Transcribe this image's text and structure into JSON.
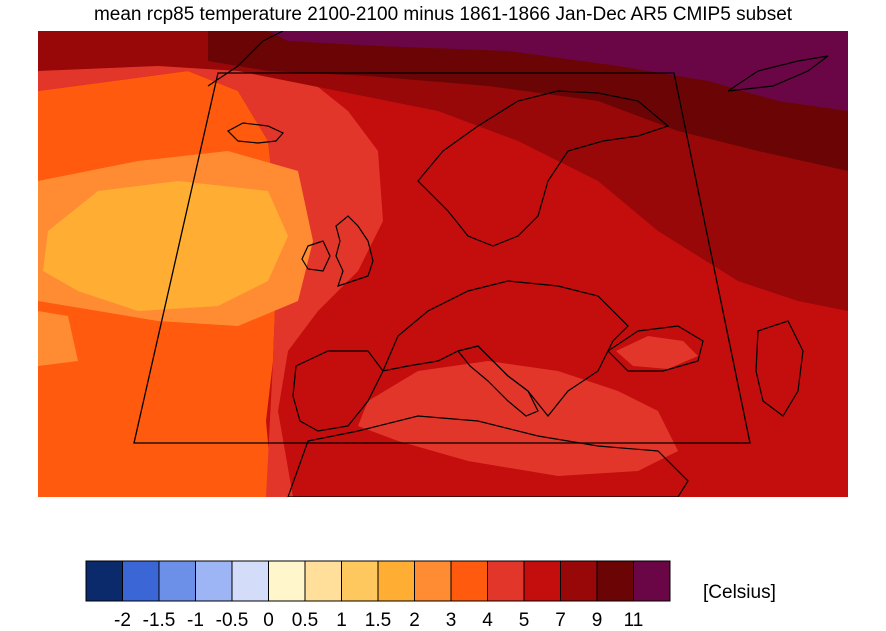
{
  "title": "mean rcp85 temperature 2100-2100 minus 1861-1866 Jan-Dec AR5 CMIP5 subset",
  "legend": {
    "units": "[Celsius]",
    "ticks": [
      "-2",
      "-1.5",
      "-1",
      "-0.5",
      "0",
      "0.5",
      "1",
      "1.5",
      "2",
      "3",
      "4",
      "5",
      "7",
      "9",
      "11"
    ],
    "colors": [
      "#0b2a6b",
      "#3b66d6",
      "#6c8fe8",
      "#9db4f5",
      "#d3ddfa",
      "#fff6cc",
      "#ffdf99",
      "#ffc85e",
      "#ffae33",
      "#ff8c33",
      "#ff5a0d",
      "#e3362a",
      "#c40d0d",
      "#990808",
      "#6b0505",
      "#6a0645"
    ]
  },
  "map": {
    "region": "Europe / North Atlantic",
    "features": [
      "temperature change contours",
      "coastlines",
      "subset domain box"
    ]
  }
}
